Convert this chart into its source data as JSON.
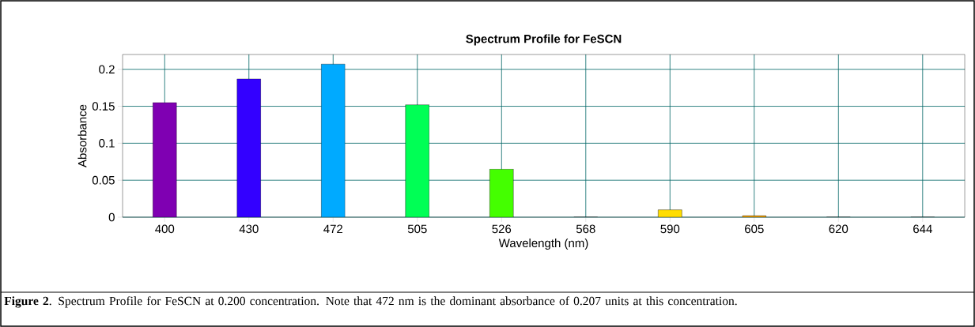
{
  "chart_data": {
    "type": "bar",
    "title": "Spectrum Profile for FeSCN",
    "xlabel": "Wavelength (nm)",
    "ylabel": "Absorbance",
    "categories": [
      "400",
      "430",
      "472",
      "505",
      "526",
      "568",
      "590",
      "605",
      "620",
      "644"
    ],
    "values": [
      0.155,
      0.187,
      0.207,
      0.152,
      0.065,
      0,
      0.01,
      0.002,
      0,
      0
    ],
    "colors": [
      "#7f00b2",
      "#3300ff",
      "#00aaff",
      "#00ff55",
      "#44ff00",
      "#ddff00",
      "#ffdd00",
      "#ffaa00",
      "#ff7700",
      "#ff0000"
    ],
    "ylim": [
      0,
      0.22
    ],
    "yticks": [
      0,
      0.05,
      0.1,
      0.15,
      0.2
    ],
    "grid": true,
    "annotations": [
      "**Figure 2**. Spectrum Profile for FeSCN at 0.200 concentration. Note that 472 nm is the dominant absorbance of 0.207 units at this concentration."
    ]
  }
}
